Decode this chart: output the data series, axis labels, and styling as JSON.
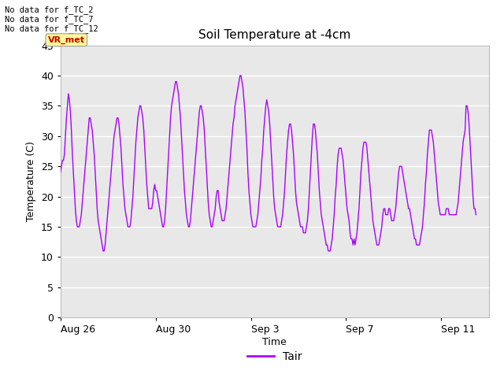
{
  "title": "Soil Temperature at -4cm",
  "ylabel": "Temperature (C)",
  "xlabel": "Time",
  "legend_label": "Tair",
  "legend_color": "#aa00ff",
  "line_color": "#aa00ff",
  "text_lines": [
    "No data for f_TC_2",
    "No data for f_TC_7",
    "No data for f_TC_12"
  ],
  "tooltip_text": "VR_met",
  "tooltip_bg": "#ffff99",
  "tooltip_fg": "#cc0000",
  "ylim": [
    0,
    45
  ],
  "yticks": [
    0,
    5,
    10,
    15,
    20,
    25,
    30,
    35,
    40,
    45
  ],
  "plot_bg": "#e8e8e8",
  "fig_bg": "#ffffff",
  "grid_color": "#ffffff",
  "start_year": 2000,
  "start_month": 8,
  "start_day": 26,
  "hours_per_point": 1.0,
  "xtick_dates": [
    "Aug 26",
    "Aug 30",
    "Sep 3",
    "Sep 7",
    "Sep 11"
  ],
  "temp_data": [
    24,
    25,
    26,
    26,
    27,
    30,
    33,
    35,
    37,
    36,
    34,
    31,
    27,
    24,
    21,
    18,
    16,
    15,
    15,
    15,
    16,
    17,
    19,
    21,
    23,
    25,
    27,
    29,
    31,
    33,
    33,
    32,
    31,
    29,
    27,
    24,
    21,
    18,
    16,
    15,
    14,
    13,
    12,
    11,
    11,
    12,
    14,
    16,
    18,
    20,
    22,
    24,
    26,
    28,
    30,
    31,
    32,
    33,
    33,
    32,
    30,
    28,
    25,
    22,
    20,
    18,
    17,
    16,
    15,
    15,
    15,
    16,
    18,
    20,
    23,
    26,
    29,
    31,
    33,
    34,
    35,
    35,
    34,
    33,
    31,
    28,
    25,
    22,
    20,
    18,
    18,
    18,
    18,
    19,
    21,
    22,
    21,
    21,
    20,
    19,
    18,
    17,
    16,
    15,
    15,
    16,
    18,
    21,
    24,
    27,
    30,
    33,
    35,
    36,
    37,
    38,
    39,
    39,
    38,
    37,
    35,
    33,
    30,
    27,
    24,
    21,
    19,
    17,
    16,
    15,
    15,
    16,
    18,
    20,
    22,
    24,
    26,
    28,
    30,
    32,
    34,
    35,
    35,
    34,
    33,
    31,
    28,
    25,
    22,
    19,
    17,
    16,
    15,
    15,
    16,
    17,
    18,
    20,
    21,
    21,
    19,
    18,
    17,
    16,
    16,
    16,
    17,
    18,
    20,
    22,
    24,
    26,
    28,
    30,
    32,
    33,
    35,
    36,
    37,
    38,
    39,
    40,
    40,
    39,
    38,
    36,
    34,
    31,
    28,
    24,
    21,
    19,
    17,
    16,
    15,
    15,
    15,
    15,
    16,
    17,
    19,
    21,
    23,
    26,
    28,
    31,
    33,
    35,
    36,
    35,
    34,
    32,
    29,
    26,
    23,
    20,
    18,
    17,
    16,
    15,
    15,
    15,
    15,
    16,
    17,
    19,
    21,
    24,
    27,
    29,
    31,
    32,
    32,
    31,
    29,
    27,
    24,
    21,
    19,
    18,
    17,
    16,
    15,
    15,
    15,
    14,
    14,
    14,
    15,
    16,
    18,
    21,
    24,
    27,
    30,
    32,
    32,
    31,
    29,
    27,
    24,
    21,
    19,
    17,
    16,
    15,
    14,
    13,
    12,
    12,
    11,
    11,
    11,
    12,
    13,
    15,
    17,
    20,
    22,
    25,
    27,
    28,
    28,
    28,
    27,
    26,
    24,
    22,
    20,
    18,
    17,
    16,
    14,
    13,
    13,
    12,
    13,
    12,
    13,
    14,
    16,
    18,
    21,
    24,
    26,
    28,
    29,
    29,
    29,
    28,
    26,
    24,
    22,
    20,
    18,
    16,
    15,
    14,
    13,
    12,
    12,
    12,
    13,
    14,
    15,
    17,
    18,
    18,
    17,
    17,
    17,
    18,
    18,
    17,
    16,
    16,
    16,
    17,
    18,
    20,
    22,
    24,
    25,
    25,
    25,
    24,
    23,
    22,
    21,
    20,
    19,
    18,
    18,
    17,
    16,
    15,
    14,
    13,
    13,
    12,
    12,
    12,
    12,
    13,
    14,
    15,
    17,
    19,
    22,
    24,
    27,
    29,
    31,
    31,
    31,
    30,
    29,
    27,
    25,
    23,
    21,
    19,
    18,
    17,
    17,
    17,
    17,
    17,
    17,
    18,
    18,
    18,
    17,
    17,
    17,
    17,
    17,
    17,
    17,
    17,
    18,
    19,
    21,
    23,
    25,
    27,
    29,
    30,
    31,
    35,
    35,
    34,
    32,
    29,
    26,
    23,
    20,
    18,
    18,
    17
  ]
}
